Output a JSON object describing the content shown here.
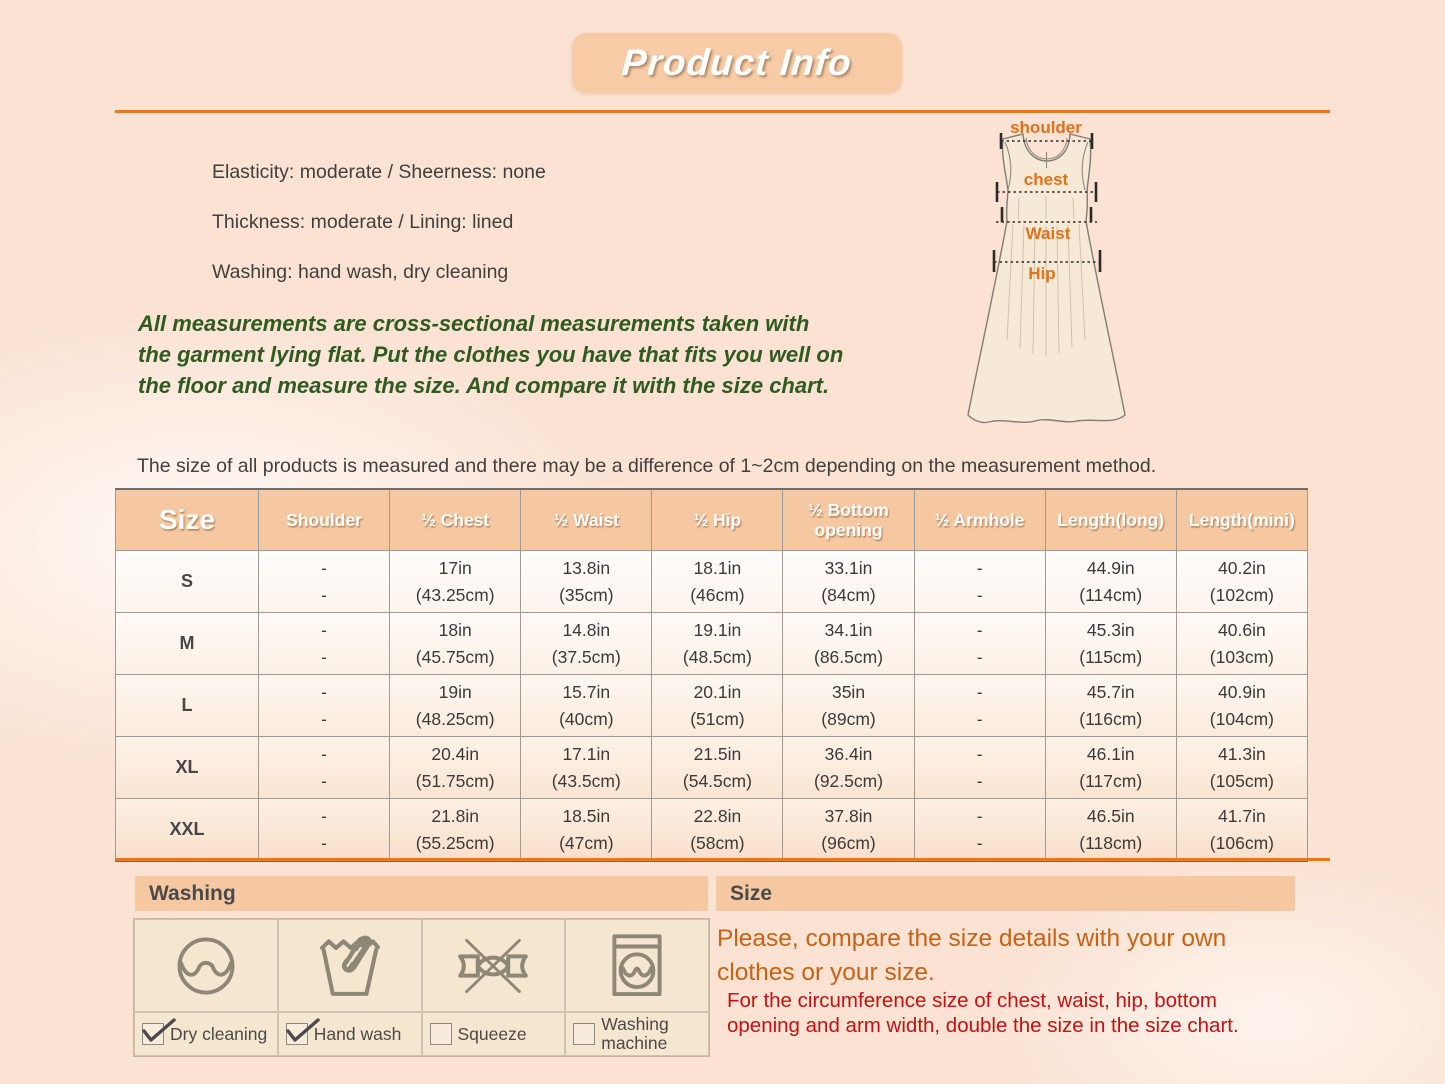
{
  "page_title": "Product Info",
  "properties": [
    "Elasticity: moderate / Sheerness: none",
    "Thickness: moderate / Lining: lined",
    "Washing: hand wash, dry cleaning"
  ],
  "measurement_note_green": "All measurements are cross-sectional measurements taken with the garment lying flat. Put the clothes you have that fits you well on the floor and measure the size. And compare it with the size chart.",
  "tolerance_note": "The size of all products is measured and there may be a difference of 1~2cm depending on the measurement method.",
  "diagram": {
    "shoulder_label": "shoulder",
    "chest_label": "chest",
    "waist_label": "Waist",
    "hip_label": "Hip"
  },
  "size_table": {
    "columns": [
      "Size",
      "Shoulder",
      "½ Chest",
      "½ Waist",
      "½ Hip",
      "½ Bottom opening",
      "½ Armhole",
      "Length(long)",
      "Length(mini)"
    ],
    "rows": [
      {
        "size": "S",
        "values": [
          [
            "-",
            "-"
          ],
          [
            "17in",
            "(43.25cm)"
          ],
          [
            "13.8in",
            "(35cm)"
          ],
          [
            "18.1in",
            "(46cm)"
          ],
          [
            "33.1in",
            "(84cm)"
          ],
          [
            "-",
            "-"
          ],
          [
            "44.9in",
            "(114cm)"
          ],
          [
            "40.2in",
            "(102cm)"
          ]
        ]
      },
      {
        "size": "M",
        "values": [
          [
            "-",
            "-"
          ],
          [
            "18in",
            "(45.75cm)"
          ],
          [
            "14.8in",
            "(37.5cm)"
          ],
          [
            "19.1in",
            "(48.5cm)"
          ],
          [
            "34.1in",
            "(86.5cm)"
          ],
          [
            "-",
            "-"
          ],
          [
            "45.3in",
            "(115cm)"
          ],
          [
            "40.6in",
            "(103cm)"
          ]
        ]
      },
      {
        "size": "L",
        "values": [
          [
            "-",
            "-"
          ],
          [
            "19in",
            "(48.25cm)"
          ],
          [
            "15.7in",
            "(40cm)"
          ],
          [
            "20.1in",
            "(51cm)"
          ],
          [
            "35in",
            "(89cm)"
          ],
          [
            "-",
            "-"
          ],
          [
            "45.7in",
            "(116cm)"
          ],
          [
            "40.9in",
            "(104cm)"
          ]
        ]
      },
      {
        "size": "XL",
        "values": [
          [
            "-",
            "-"
          ],
          [
            "20.4in",
            "(51.75cm)"
          ],
          [
            "17.1in",
            "(43.5cm)"
          ],
          [
            "21.5in",
            "(54.5cm)"
          ],
          [
            "36.4in",
            "(92.5cm)"
          ],
          [
            "-",
            "-"
          ],
          [
            "46.1in",
            "(117cm)"
          ],
          [
            "41.3in",
            "(105cm)"
          ]
        ]
      },
      {
        "size": "XXL",
        "values": [
          [
            "-",
            "-"
          ],
          [
            "21.8in",
            "(55.25cm)"
          ],
          [
            "18.5in",
            "(47cm)"
          ],
          [
            "22.8in",
            "(58cm)"
          ],
          [
            "37.8in",
            "(96cm)"
          ],
          [
            "-",
            "-"
          ],
          [
            "46.5in",
            "(118cm)"
          ],
          [
            "41.7in",
            "(106cm)"
          ]
        ]
      }
    ]
  },
  "washing": {
    "title": "Washing",
    "items": [
      {
        "label": "Dry cleaning",
        "checked": true,
        "icon": "dry-cleaning-icon"
      },
      {
        "label": "Hand wash",
        "checked": true,
        "icon": "hand-wash-icon"
      },
      {
        "label": "Squeeze",
        "checked": false,
        "icon": "no-wring-icon"
      },
      {
        "label": "Washing machine",
        "checked": false,
        "icon": "washing-machine-icon"
      }
    ]
  },
  "size_info": {
    "title": "Size",
    "primary": "Please, compare the size details with your own clothes or your size.",
    "secondary": "For the circumference size of chest, waist, hip, bottom opening and arm width, double the size in the size chart."
  },
  "colors": {
    "accent_orange": "#e87722",
    "label_orange": "#e2711d",
    "text_red": "#c41112",
    "text_green": "#2f5a20",
    "peach_bar": "#f6c8a2"
  }
}
